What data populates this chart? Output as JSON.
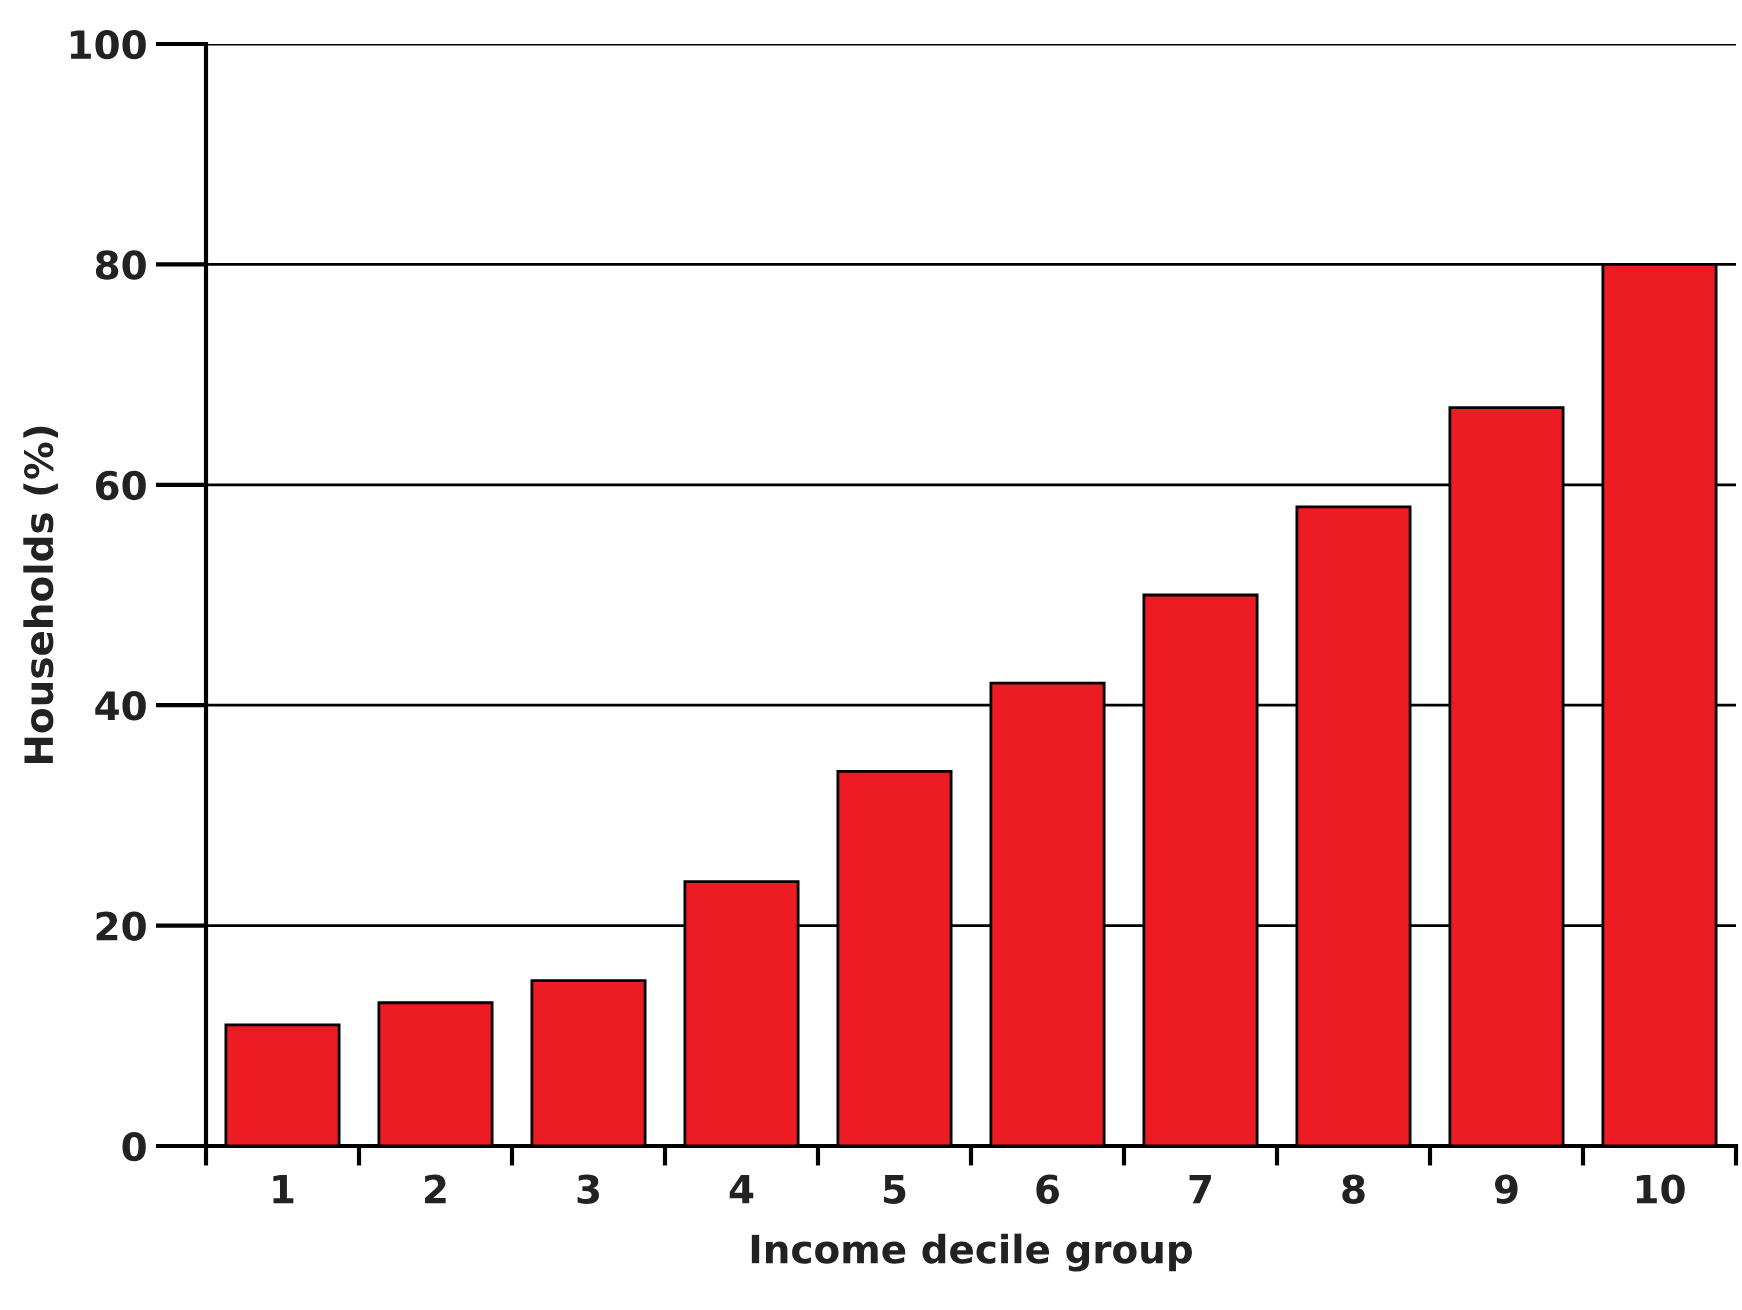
{
  "chart_data": {
    "type": "bar",
    "xlabel": "Income decile group",
    "ylabel": "Households (%)",
    "categories": [
      "1",
      "2",
      "3",
      "4",
      "5",
      "6",
      "7",
      "8",
      "9",
      "10"
    ],
    "values": [
      11,
      13,
      15,
      24,
      34,
      42,
      50,
      58,
      67,
      80
    ],
    "color": "#ed1c24",
    "ylim": [
      0,
      100
    ],
    "yticks": [
      0,
      20,
      40,
      60,
      80,
      100
    ],
    "grid": "y",
    "legend": false
  }
}
